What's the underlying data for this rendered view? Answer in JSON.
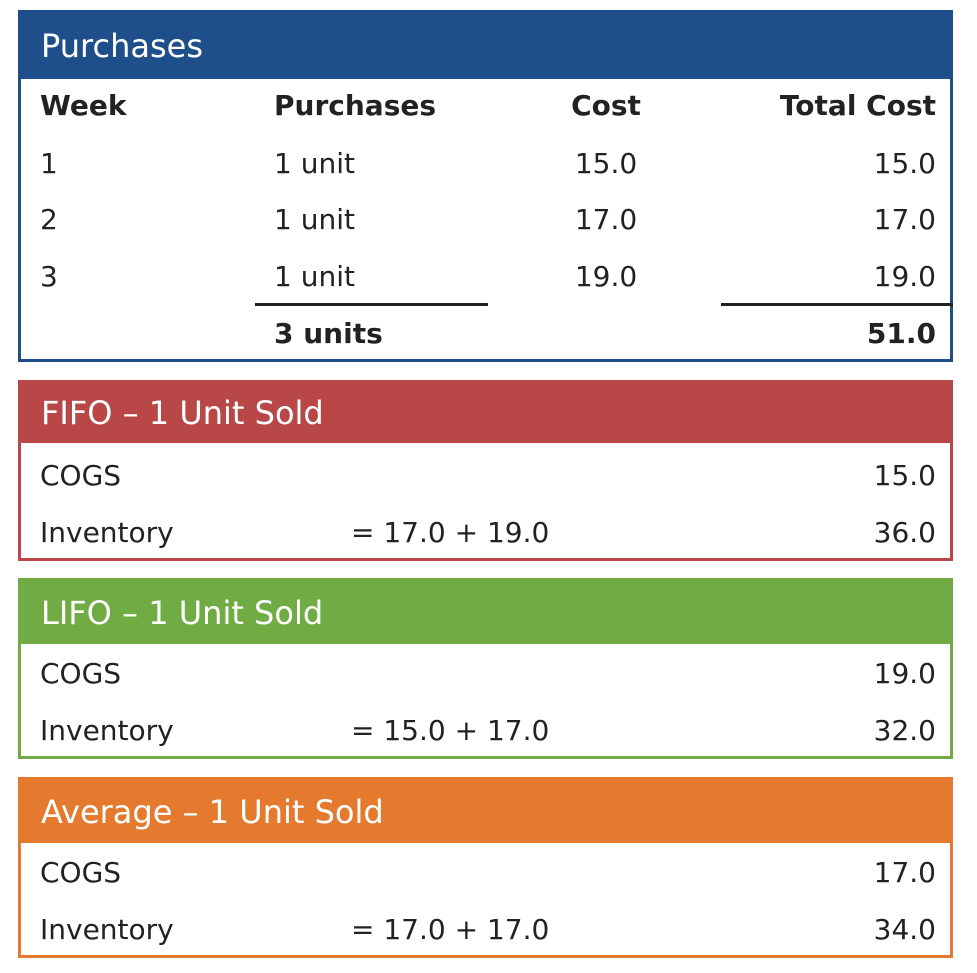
{
  "colors": {
    "purchases": "#1e4f8b",
    "fifo": "#b94747",
    "lifo": "#70ab44",
    "average": "#e57a2e"
  },
  "purchases": {
    "title": "Purchases",
    "headers": [
      "Week",
      "Purchases",
      "Cost",
      "Total Cost"
    ],
    "rows": [
      [
        "1",
        "1 unit",
        "15.0",
        "15.0"
      ],
      [
        "2",
        "1 unit",
        "17.0",
        "17.0"
      ],
      [
        "3",
        "1 unit",
        "19.0",
        "19.0"
      ]
    ],
    "total_units": "3 units",
    "total_cost": "51.0"
  },
  "fifo": {
    "title": "FIFO – 1 Unit Sold",
    "cogs_label": "COGS",
    "cogs": "15.0",
    "inv_label": "Inventory",
    "inv_formula": "= 17.0 + 19.0",
    "inv": "36.0"
  },
  "lifo": {
    "title": "LIFO – 1 Unit Sold",
    "cogs_label": "COGS",
    "cogs": "19.0",
    "inv_label": "Inventory",
    "inv_formula": "= 15.0 + 17.0",
    "inv": "32.0"
  },
  "average": {
    "title": "Average – 1 Unit Sold",
    "cogs_label": "COGS",
    "cogs": "17.0",
    "inv_label": "Inventory",
    "inv_formula": "= 17.0 + 17.0",
    "inv": "34.0"
  }
}
